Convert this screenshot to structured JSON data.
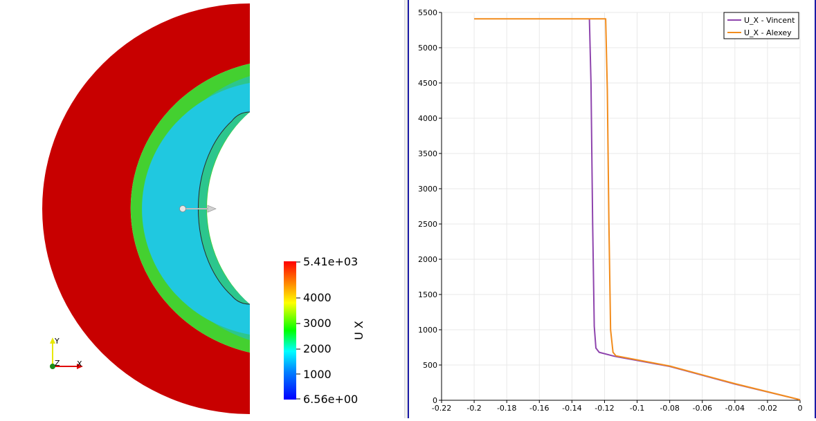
{
  "render_view": {
    "colorbar": {
      "title": "U X",
      "max_label": "5.41e+03",
      "min_label": "6.56e+00",
      "ticks": [
        "4000",
        "3000",
        "2000",
        "1000"
      ]
    },
    "axes_triad": {
      "y": "Y",
      "z": "Z",
      "x": "X"
    }
  },
  "chart_data": {
    "type": "line",
    "title": "",
    "xlabel": "",
    "ylabel": "",
    "xlim": [
      -0.22,
      0
    ],
    "ylim": [
      0,
      5500
    ],
    "x_ticks": [
      "-0.22",
      "-0.2",
      "-0.18",
      "-0.16",
      "-0.14",
      "-0.12",
      "-0.1",
      "-0.08",
      "-0.06",
      "-0.04",
      "-0.02",
      "0"
    ],
    "y_ticks": [
      "0",
      "500",
      "1000",
      "1500",
      "2000",
      "2500",
      "3000",
      "3500",
      "4000",
      "4500",
      "5000",
      "5500"
    ],
    "grid": true,
    "legend": "top-right",
    "series": [
      {
        "name": "U_X - Vincent",
        "color": "#8e44ad",
        "points": [
          [
            -0.1293,
            5410
          ],
          [
            -0.1283,
            4500
          ],
          [
            -0.1273,
            2500
          ],
          [
            -0.1263,
            1050
          ],
          [
            -0.1253,
            740
          ],
          [
            -0.1233,
            680
          ],
          [
            -0.114,
            625
          ],
          [
            -0.08,
            480
          ],
          [
            -0.04,
            230
          ],
          [
            0,
            7
          ]
        ]
      },
      {
        "name": "U_X - Alexey",
        "color": "#f28c1c",
        "points": [
          [
            -0.2,
            5410
          ],
          [
            -0.1193,
            5410
          ],
          [
            -0.1183,
            4400
          ],
          [
            -0.1173,
            2500
          ],
          [
            -0.1163,
            1000
          ],
          [
            -0.1148,
            680
          ],
          [
            -0.113,
            630
          ],
          [
            -0.08,
            485
          ],
          [
            -0.04,
            235
          ],
          [
            0,
            7
          ]
        ]
      }
    ]
  }
}
